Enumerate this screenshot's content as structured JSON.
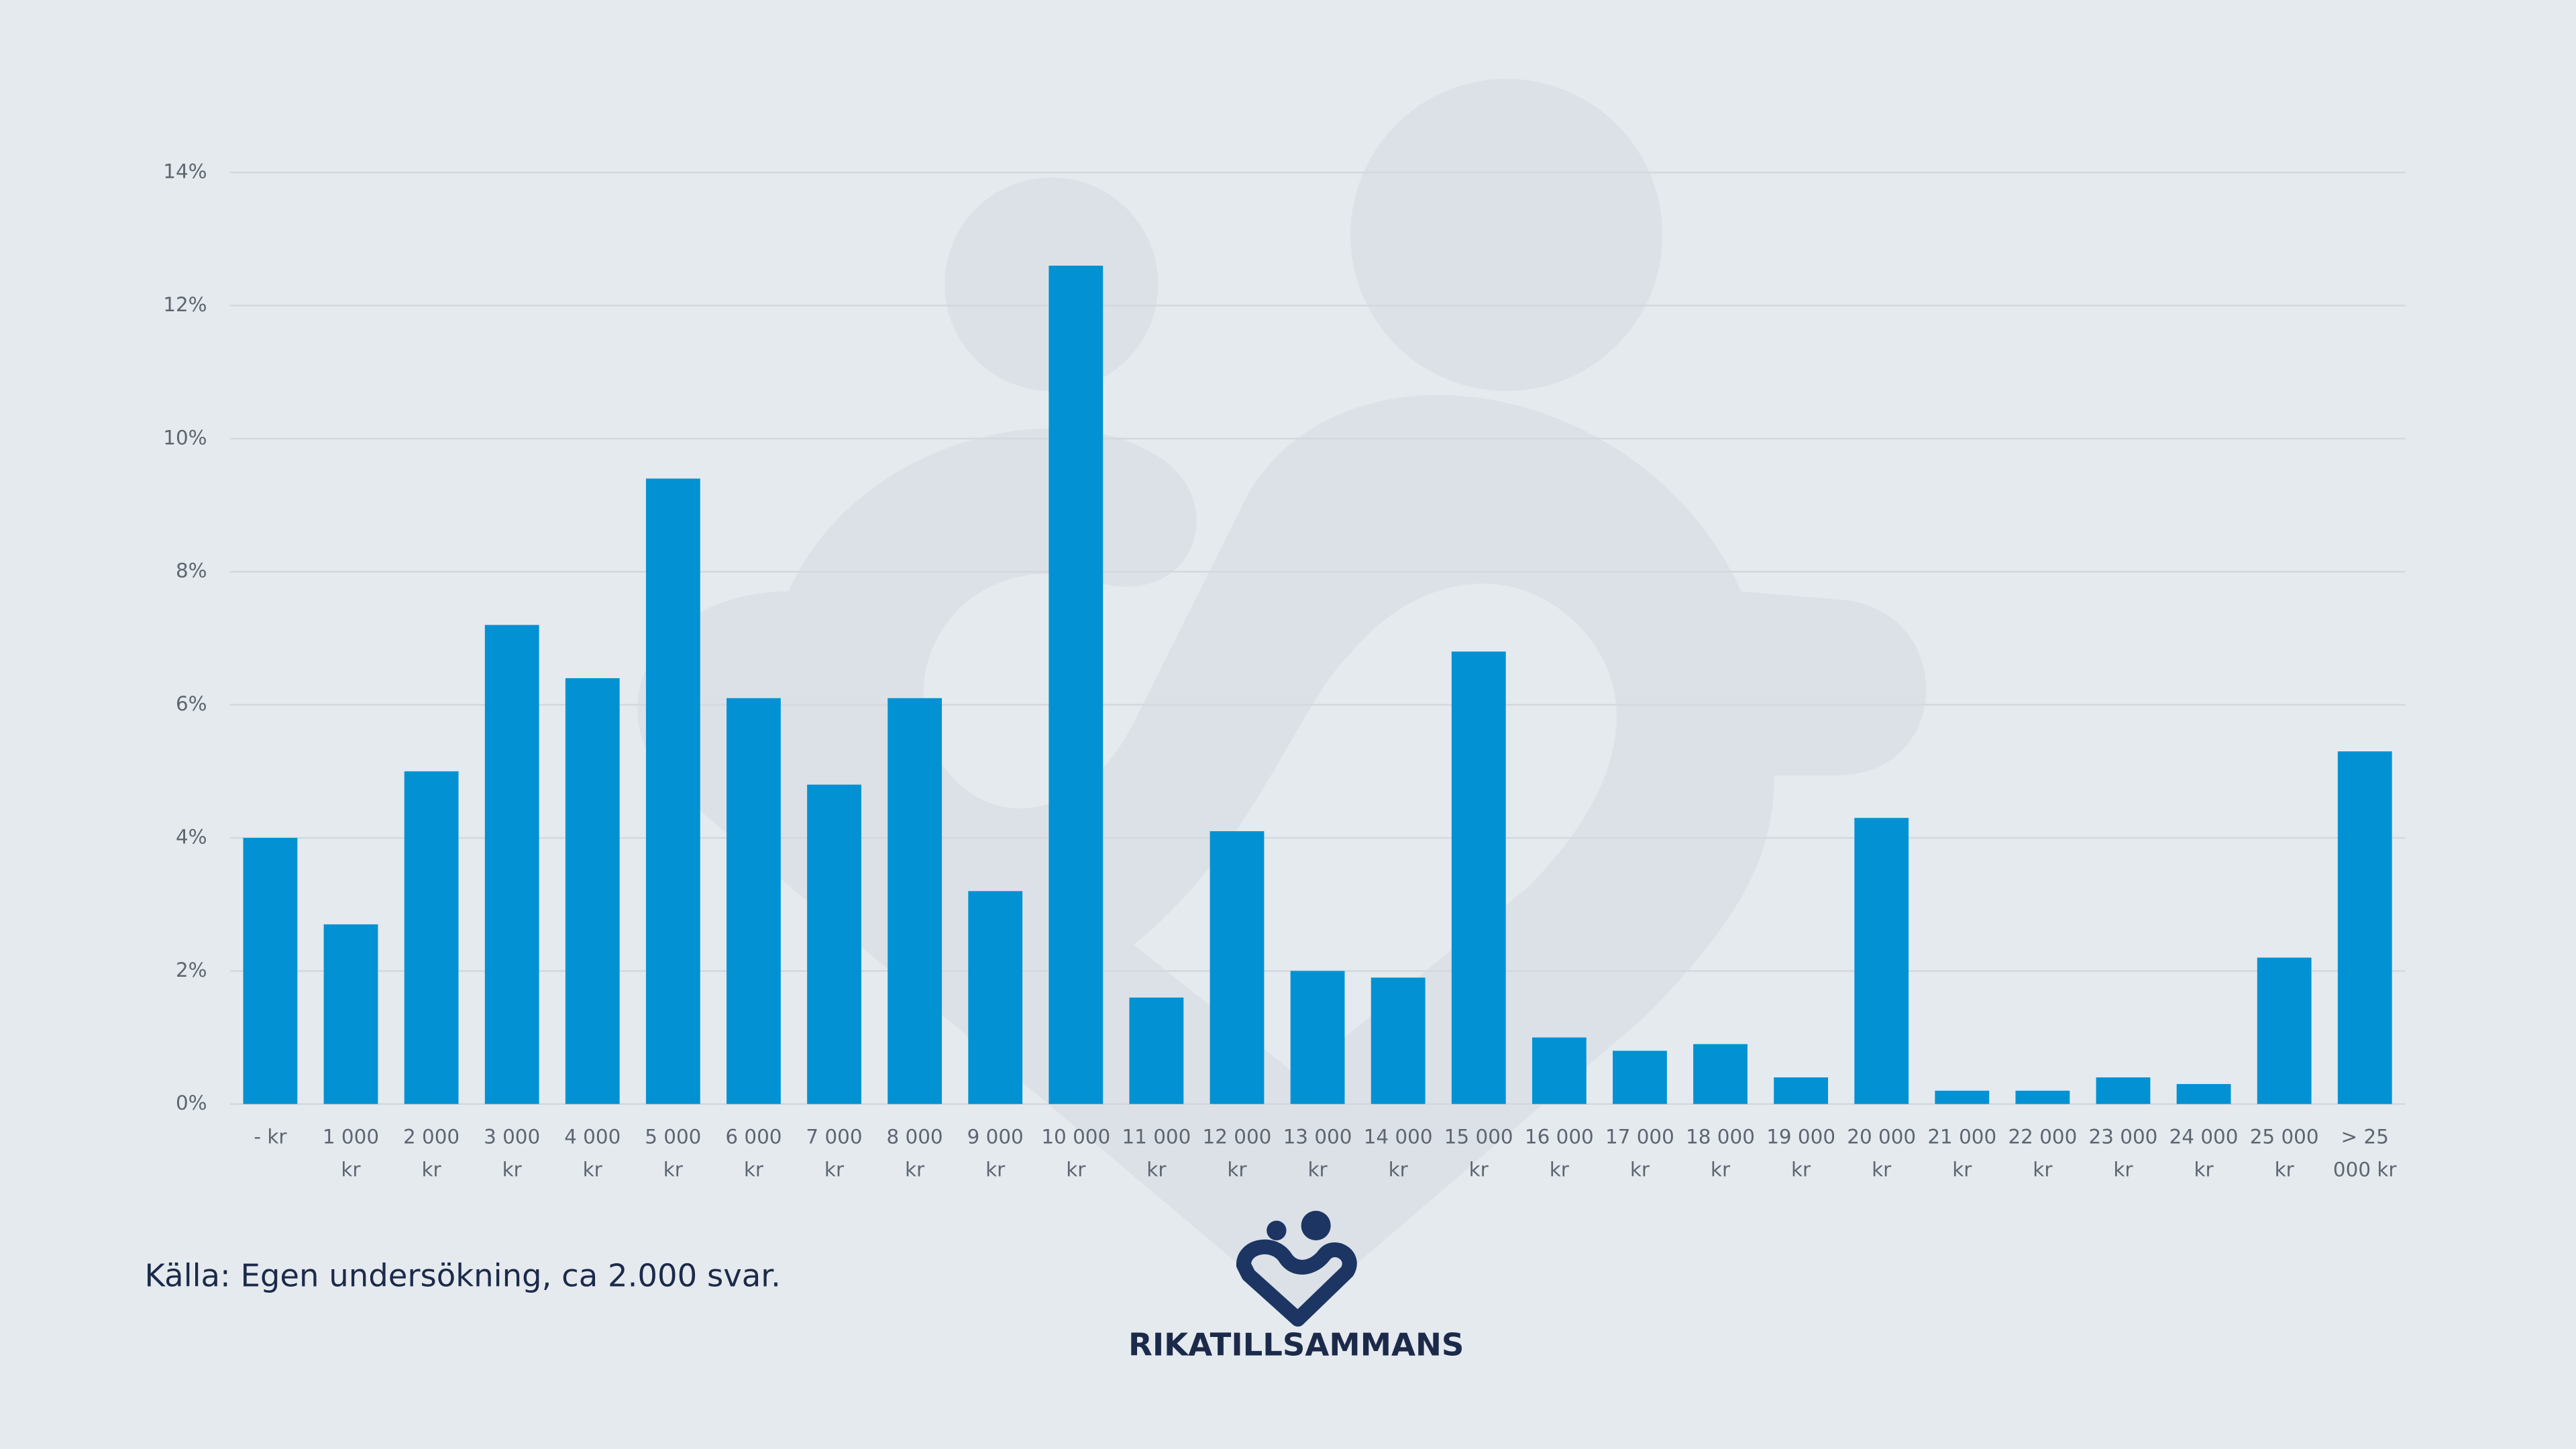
{
  "chart_data": {
    "type": "bar",
    "categories": [
      "-    kr",
      "1 000 kr",
      "2 000 kr",
      "3 000 kr",
      "4 000 kr",
      "5 000 kr",
      "6 000 kr",
      "7 000 kr",
      "8 000 kr",
      "9 000 kr",
      "10 000 kr",
      "11 000 kr",
      "12 000 kr",
      "13 000 kr",
      "14 000 kr",
      "15 000 kr",
      "16 000 kr",
      "17 000 kr",
      "18 000 kr",
      "19 000 kr",
      "20 000 kr",
      "21 000 kr",
      "22 000 kr",
      "23 000 kr",
      "24 000 kr",
      "25 000 kr",
      "> 25 000 kr"
    ],
    "values": [
      4.0,
      2.7,
      5.0,
      7.2,
      6.4,
      9.4,
      6.1,
      4.8,
      6.1,
      3.2,
      12.6,
      1.6,
      4.1,
      2.0,
      1.9,
      6.8,
      1.0,
      0.8,
      0.9,
      0.4,
      4.3,
      0.2,
      0.2,
      0.4,
      0.3,
      2.2,
      5.3
    ],
    "color": "#0292d3",
    "ylim": [
      0,
      14
    ],
    "yticks": [
      {
        "value": 0,
        "label": "0%"
      },
      {
        "value": 2,
        "label": "2%"
      },
      {
        "value": 4,
        "label": "4%"
      },
      {
        "value": 6,
        "label": "6%"
      },
      {
        "value": 8,
        "label": "8%"
      },
      {
        "value": 10,
        "label": "10%"
      },
      {
        "value": 12,
        "label": "12%"
      },
      {
        "value": 14,
        "label": "14%"
      }
    ],
    "grid": true,
    "source": "Källa: Egen undersökning, ca 2.000 svar."
  },
  "logo": "RIKATILLSAMMANS"
}
